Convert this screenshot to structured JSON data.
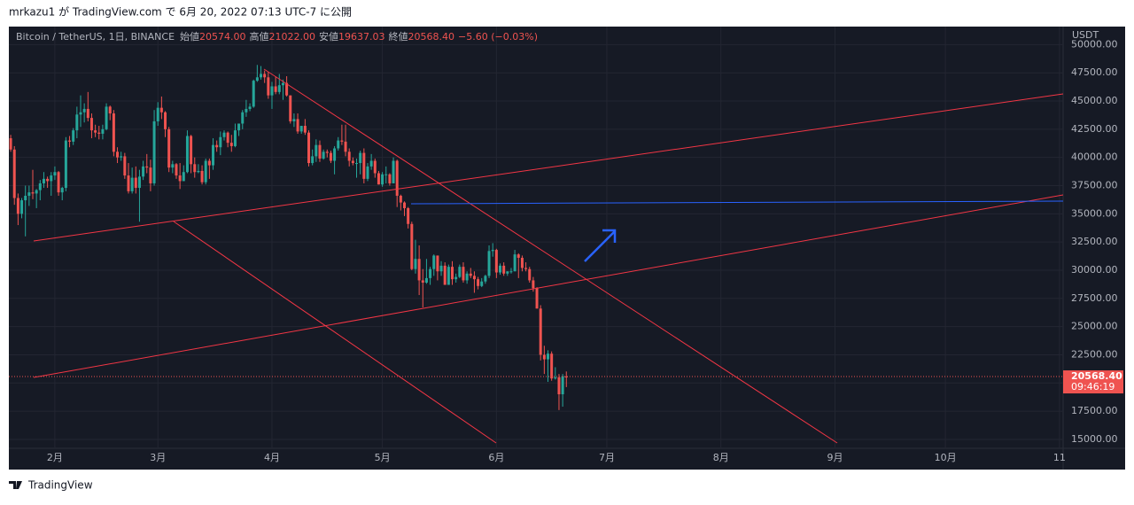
{
  "published": "mrkazu1 が TradingView.com で 6月 20, 2022 07:13 UTC-7 に公開",
  "footer": "TradingView",
  "chart_data": {
    "type": "candlestick",
    "legend": {
      "symbol": "Bitcoin / TetherUS, 1日, BINANCE",
      "fields": [
        {
          "label": "始値",
          "value": "20574.00"
        },
        {
          "label": "高値",
          "value": "21022.00"
        },
        {
          "label": "安値",
          "value": "19637.03"
        },
        {
          "label": "終値",
          "value": "20568.40"
        }
      ],
      "change": "−5.60 (−0.03%)"
    },
    "y_unit": "USDT",
    "up_color": "#26a69a",
    "down_color": "#ef5350",
    "grid": true,
    "price_tag": {
      "value": 20568.4,
      "label": "20568.40"
    },
    "countdown": "09:46:19",
    "xlim": [
      -0.5,
      286
    ],
    "xticks": [
      {
        "value": 12,
        "label": "2月"
      },
      {
        "value": 40,
        "label": "3月"
      },
      {
        "value": 71,
        "label": "4月"
      },
      {
        "value": 101,
        "label": "5月"
      },
      {
        "value": 132,
        "label": "6月"
      },
      {
        "value": 162,
        "label": "7月"
      },
      {
        "value": 193,
        "label": "8月"
      },
      {
        "value": 224,
        "label": "9月"
      },
      {
        "value": 254,
        "label": "10月"
      },
      {
        "value": 285,
        "label": "11"
      }
    ],
    "ylim": [
      14210,
      51600
    ],
    "yticks": [
      {
        "value": 15000,
        "label": "15000.00"
      },
      {
        "value": 17500,
        "label": "17500.00"
      },
      {
        "value": 20000,
        "label": "20000.00"
      },
      {
        "value": 22500,
        "label": "22500.00"
      },
      {
        "value": 25000,
        "label": "25000.00"
      },
      {
        "value": 27500,
        "label": "27500.00"
      },
      {
        "value": 30000,
        "label": "30000.00"
      },
      {
        "value": 32500,
        "label": "32500.00"
      },
      {
        "value": 35000,
        "label": "35000.00"
      },
      {
        "value": 37500,
        "label": "37500.00"
      },
      {
        "value": 40000,
        "label": "40000.00"
      },
      {
        "value": 42500,
        "label": "42500.00"
      },
      {
        "value": 45000,
        "label": "45000.00"
      },
      {
        "value": 47500,
        "label": "47500.00"
      },
      {
        "value": 50000,
        "label": "50000.00"
      }
    ],
    "candles": [
      [
        41700,
        42000,
        40500,
        40700
      ],
      [
        40700,
        41000,
        35800,
        36400
      ],
      [
        36400,
        36800,
        34000,
        35000
      ],
      [
        35000,
        36400,
        34600,
        36200
      ],
      [
        36200,
        37500,
        33000,
        36600
      ],
      [
        36600,
        37500,
        35700,
        36900
      ],
      [
        36900,
        38900,
        36300,
        36800
      ],
      [
        36800,
        37200,
        35500,
        37100
      ],
      [
        37100,
        38000,
        36200,
        37700
      ],
      [
        37700,
        38700,
        37300,
        38100
      ],
      [
        38100,
        38300,
        37300,
        37900
      ],
      [
        37900,
        38700,
        36600,
        38400
      ],
      [
        38400,
        39200,
        38000,
        38700
      ],
      [
        38700,
        38800,
        36600,
        36900
      ],
      [
        36900,
        37400,
        36200,
        37300
      ],
      [
        37300,
        41800,
        37000,
        41500
      ],
      [
        41500,
        41900,
        40900,
        41400
      ],
      [
        41400,
        42600,
        41100,
        42400
      ],
      [
        42400,
        44500,
        41700,
        43800
      ],
      [
        43800,
        45500,
        42700,
        44000
      ],
      [
        44000,
        44800,
        43100,
        44300
      ],
      [
        44300,
        45800,
        43200,
        43500
      ],
      [
        43500,
        43900,
        41700,
        42400
      ],
      [
        42400,
        42900,
        41800,
        42200
      ],
      [
        42200,
        42800,
        41600,
        42100
      ],
      [
        42100,
        42900,
        41600,
        42500
      ],
      [
        42500,
        44800,
        42400,
        44500
      ],
      [
        44500,
        44600,
        43300,
        43900
      ],
      [
        43900,
        44200,
        40100,
        40500
      ],
      [
        40500,
        40900,
        39500,
        40000
      ],
      [
        40000,
        40500,
        39700,
        40100
      ],
      [
        40100,
        40400,
        38100,
        38400
      ],
      [
        38400,
        39500,
        36800,
        37000
      ],
      [
        37000,
        39100,
        36800,
        38200
      ],
      [
        38200,
        39200,
        36800,
        37300
      ],
      [
        37300,
        38900,
        34300,
        38300
      ],
      [
        38300,
        39700,
        38000,
        39200
      ],
      [
        39200,
        40300,
        38600,
        39100
      ],
      [
        39100,
        39800,
        37000,
        37700
      ],
      [
        37700,
        44200,
        37500,
        43200
      ],
      [
        43200,
        44900,
        42800,
        44400
      ],
      [
        44400,
        45400,
        43400,
        44000
      ],
      [
        44000,
        44100,
        41800,
        42500
      ],
      [
        42500,
        42700,
        38700,
        39100
      ],
      [
        39100,
        39700,
        38600,
        39400
      ],
      [
        39400,
        39500,
        38100,
        38400
      ],
      [
        38400,
        39500,
        37200,
        37900
      ],
      [
        37900,
        39300,
        37900,
        38700
      ],
      [
        38700,
        42400,
        38600,
        41900
      ],
      [
        41900,
        42000,
        38600,
        39400
      ],
      [
        39400,
        40000,
        38200,
        38700
      ],
      [
        38700,
        39400,
        38600,
        38800
      ],
      [
        38800,
        39300,
        37600,
        37800
      ],
      [
        37800,
        39900,
        37600,
        39700
      ],
      [
        39700,
        39900,
        38100,
        39300
      ],
      [
        39300,
        41700,
        38900,
        41100
      ],
      [
        41100,
        41500,
        40500,
        40900
      ],
      [
        40900,
        42300,
        40200,
        41800
      ],
      [
        41800,
        42400,
        41500,
        42200
      ],
      [
        42200,
        42300,
        40900,
        41300
      ],
      [
        41300,
        42000,
        40500,
        41000
      ],
      [
        41000,
        43000,
        40900,
        42400
      ],
      [
        42400,
        43000,
        41900,
        43000
      ],
      [
        43000,
        44200,
        42500,
        44000
      ],
      [
        44000,
        45100,
        43600,
        44300
      ],
      [
        44300,
        44800,
        44100,
        44500
      ],
      [
        44500,
        46900,
        44400,
        46800
      ],
      [
        46800,
        48200,
        46700,
        47100
      ],
      [
        47100,
        48100,
        46900,
        47400
      ],
      [
        47400,
        47700,
        46600,
        47100
      ],
      [
        47100,
        47600,
        45200,
        45500
      ],
      [
        45500,
        46700,
        44300,
        46300
      ],
      [
        46300,
        47200,
        45600,
        45800
      ],
      [
        45800,
        47400,
        45600,
        46400
      ],
      [
        46400,
        46900,
        45100,
        46600
      ],
      [
        46600,
        47200,
        45400,
        45500
      ],
      [
        45500,
        45500,
        43000,
        43200
      ],
      [
        43200,
        43900,
        42700,
        43400
      ],
      [
        43400,
        43900,
        42100,
        42300
      ],
      [
        42300,
        42800,
        42100,
        42800
      ],
      [
        42800,
        43400,
        42000,
        42200
      ],
      [
        42200,
        42400,
        39200,
        39500
      ],
      [
        39500,
        40700,
        39300,
        40100
      ],
      [
        40100,
        41600,
        39600,
        41100
      ],
      [
        41100,
        41500,
        39600,
        39900
      ],
      [
        39900,
        40700,
        39800,
        40500
      ],
      [
        40500,
        40700,
        40000,
        40400
      ],
      [
        40400,
        40600,
        39500,
        39700
      ],
      [
        39700,
        41000,
        38500,
        40800
      ],
      [
        40800,
        41800,
        40600,
        41500
      ],
      [
        41500,
        42900,
        41100,
        41400
      ],
      [
        41400,
        42900,
        40100,
        40500
      ],
      [
        40500,
        40800,
        39200,
        39700
      ],
      [
        39700,
        40000,
        39300,
        39500
      ],
      [
        39500,
        39900,
        38200,
        39500
      ],
      [
        39500,
        40600,
        38500,
        40400
      ],
      [
        40400,
        40800,
        37700,
        38100
      ],
      [
        38100,
        39500,
        37900,
        39200
      ],
      [
        39200,
        40300,
        38900,
        39700
      ],
      [
        39700,
        39900,
        38200,
        38600
      ],
      [
        38600,
        38800,
        37600,
        37600
      ],
      [
        37600,
        38700,
        37400,
        38500
      ],
      [
        38500,
        39200,
        37700,
        38500
      ],
      [
        38500,
        38600,
        37500,
        37700
      ],
      [
        37700,
        40000,
        37700,
        39700
      ],
      [
        39700,
        39800,
        35600,
        36600
      ],
      [
        36600,
        36700,
        35300,
        36000
      ],
      [
        36000,
        36100,
        34800,
        35500
      ],
      [
        35500,
        35600,
        33700,
        34100
      ],
      [
        34100,
        34300,
        30000,
        30100
      ],
      [
        30100,
        32700,
        29700,
        31000
      ],
      [
        31000,
        32200,
        27800,
        29100
      ],
      [
        29100,
        30100,
        26700,
        28900
      ],
      [
        28900,
        31000,
        28800,
        29300
      ],
      [
        29300,
        30300,
        28700,
        30100
      ],
      [
        30100,
        31400,
        29500,
        31300
      ],
      [
        31300,
        31300,
        29100,
        29900
      ],
      [
        29900,
        30800,
        29500,
        30400
      ],
      [
        30400,
        30700,
        28700,
        28700
      ],
      [
        28700,
        30500,
        28700,
        30300
      ],
      [
        30300,
        30800,
        28700,
        29200
      ],
      [
        29200,
        29700,
        28900,
        29400
      ],
      [
        29400,
        30500,
        29300,
        30300
      ],
      [
        30300,
        30700,
        28900,
        29100
      ],
      [
        29100,
        29900,
        28800,
        29700
      ],
      [
        29700,
        30200,
        29300,
        29500
      ],
      [
        29500,
        29900,
        28000,
        29200
      ],
      [
        29200,
        29400,
        28300,
        28600
      ],
      [
        28600,
        29300,
        28500,
        29000
      ],
      [
        29000,
        29600,
        28800,
        29500
      ],
      [
        29500,
        32200,
        29300,
        31700
      ],
      [
        31700,
        32400,
        31200,
        31800
      ],
      [
        31800,
        31900,
        29300,
        29800
      ],
      [
        29800,
        30600,
        29600,
        30400
      ],
      [
        30400,
        30700,
        29500,
        29700
      ],
      [
        29700,
        29900,
        29500,
        29900
      ],
      [
        29900,
        30200,
        29700,
        29900
      ],
      [
        29900,
        31800,
        29900,
        31400
      ],
      [
        31400,
        31500,
        29300,
        31100
      ],
      [
        31100,
        31300,
        29900,
        30200
      ],
      [
        30200,
        30700,
        29900,
        30100
      ],
      [
        30100,
        30300,
        28900,
        29100
      ],
      [
        29100,
        29400,
        28100,
        28400
      ],
      [
        28400,
        28500,
        26600,
        26600
      ],
      [
        26600,
        26900,
        22000,
        22500
      ],
      [
        22500,
        23300,
        20800,
        22100
      ],
      [
        22100,
        22900,
        20100,
        22600
      ],
      [
        22600,
        22800,
        20200,
        20400
      ],
      [
        20400,
        21400,
        20300,
        20500
      ],
      [
        20500,
        20800,
        17600,
        19000
      ],
      [
        19000,
        20800,
        17900,
        20600
      ],
      [
        20574,
        21022,
        19637.03,
        20568.4
      ]
    ]
  }
}
